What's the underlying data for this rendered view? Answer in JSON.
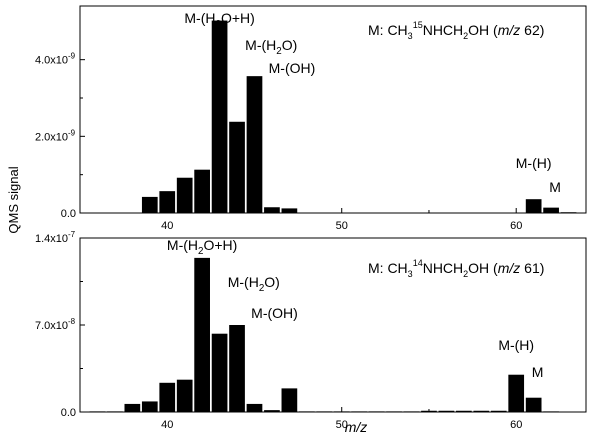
{
  "ylabel": "QMS signal",
  "xlabel": "m/z",
  "chart_data": [
    {
      "type": "bar",
      "title": "M: CH₃¹⁵NHCH₂OH (m/z 62)",
      "title_parts": {
        "prefix": "M: CH",
        "sub1": "3",
        "sup": "15",
        "mid": "NHCH",
        "sub2": "2",
        "suffix": "OH (",
        "mz": "m/z",
        "end": " 62)"
      },
      "xlim": [
        35,
        64
      ],
      "ylim": [
        0,
        5.4e-09
      ],
      "xticks": [
        40,
        50,
        60
      ],
      "xtick_labels": [
        "40",
        "50",
        "60"
      ],
      "yticks": [
        0,
        2e-09,
        4e-09
      ],
      "ytick_labels": [
        "0.0",
        "2.0x10",
        "4.0x10"
      ],
      "ytick_exps": [
        "",
        "-9",
        "-9"
      ],
      "x": [
        36,
        37,
        38,
        39,
        40,
        41,
        42,
        43,
        44,
        45,
        46,
        47,
        48,
        49,
        50,
        51,
        52,
        53,
        54,
        55,
        56,
        57,
        58,
        59,
        60,
        61,
        62,
        63
      ],
      "values": [
        0.0,
        0.0,
        0.0,
        4.2e-10,
        5.7e-10,
        9.2e-10,
        1.13e-09,
        5.02e-09,
        2.38e-09,
        3.57e-09,
        1.5e-10,
        1.2e-10,
        0.0,
        0.0,
        0.0,
        0.0,
        0.0,
        0.0,
        0.0,
        0.0,
        0.0,
        0.0,
        0.0,
        0.0,
        0.0,
        3.6e-10,
        1.4e-10,
        2e-11
      ],
      "annotations": [
        {
          "text": "M-(H2O+H)",
          "at_x": 43,
          "parts": [
            "M-(H",
            "2",
            "O+H)"
          ]
        },
        {
          "text": "M-(H2O)",
          "at_x": 44,
          "parts": [
            "M-(H",
            "2",
            "O)"
          ]
        },
        {
          "text": "M-(OH)",
          "at_x": 45,
          "parts": [
            "M-(OH)",
            "",
            ""
          ]
        },
        {
          "text": "M-(H)",
          "at_x": 61,
          "parts": [
            "M-(H)",
            "",
            ""
          ]
        },
        {
          "text": "M",
          "at_x": 62,
          "parts": [
            "M",
            "",
            ""
          ]
        }
      ]
    },
    {
      "type": "bar",
      "title": "M: CH₃¹⁴NHCH₂OH (m/z 61)",
      "title_parts": {
        "prefix": "M: CH",
        "sub1": "3",
        "sup": "14",
        "mid": "NHCH",
        "sub2": "2",
        "suffix": "OH (",
        "mz": "m/z",
        "end": " 61)"
      },
      "xlim": [
        35,
        64
      ],
      "ylim": [
        0,
        1.4e-07
      ],
      "xticks": [
        40,
        50,
        60
      ],
      "xtick_labels": [
        "40",
        "50",
        "60"
      ],
      "yticks": [
        0,
        7e-08,
        1.4e-07
      ],
      "ytick_labels": [
        "0.0",
        "7.0x10",
        "1.4x10"
      ],
      "ytick_exps": [
        "",
        "-8",
        "-7"
      ],
      "x": [
        36,
        37,
        38,
        39,
        40,
        41,
        42,
        43,
        44,
        45,
        46,
        47,
        48,
        49,
        50,
        51,
        52,
        53,
        54,
        55,
        56,
        57,
        58,
        59,
        60,
        61,
        62,
        63
      ],
      "values": [
        5e-10,
        5e-10,
        6.5e-09,
        8.5e-09,
        2.35e-08,
        2.6e-08,
        1.24e-07,
        6.3e-08,
        7e-08,
        6.5e-09,
        1.5e-09,
        1.9e-08,
        5e-10,
        5e-10,
        5e-10,
        5e-10,
        5e-10,
        5e-10,
        5e-10,
        1e-09,
        1e-09,
        1e-09,
        1e-09,
        1e-09,
        3e-08,
        1.15e-08,
        5e-10,
        0.0
      ],
      "annotations": [
        {
          "text": "M-(H2O+H)",
          "at_x": 42,
          "parts": [
            "M-(H",
            "2",
            "O+H)"
          ]
        },
        {
          "text": "M-(H2O)",
          "at_x": 43,
          "parts": [
            "M-(H",
            "2",
            "O)"
          ]
        },
        {
          "text": "M-(OH)",
          "at_x": 44,
          "parts": [
            "M-(OH)",
            "",
            ""
          ]
        },
        {
          "text": "M-(H)",
          "at_x": 60,
          "parts": [
            "M-(H)",
            "",
            ""
          ]
        },
        {
          "text": "M",
          "at_x": 61,
          "parts": [
            "M",
            "",
            ""
          ]
        }
      ]
    }
  ]
}
